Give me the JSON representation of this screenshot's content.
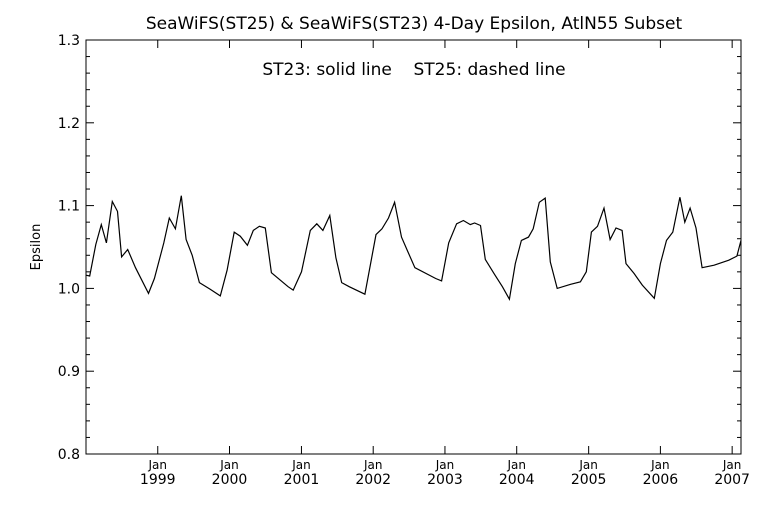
{
  "chart_data": {
    "type": "line",
    "title": "SeaWiFS(ST25) & SeaWiFS(ST23) 4-Day Epsilon, AtlN55 Subset",
    "annotation": "ST23: solid line    ST25: dashed line",
    "xlabel": "",
    "ylabel": "Epsilon",
    "ylim": [
      0.8,
      1.3
    ],
    "yticks": [
      "0.8",
      "0.9",
      "1.0",
      "1.1",
      "1.2",
      "1.3"
    ],
    "xlim": [
      "1998-01-01",
      "2007-02-15"
    ],
    "xticks": [
      {
        "month": "Jan",
        "year": "1999",
        "date": "1999-01-01"
      },
      {
        "month": "Jan",
        "year": "2000",
        "date": "2000-01-01"
      },
      {
        "month": "Jan",
        "year": "2001",
        "date": "2001-01-01"
      },
      {
        "month": "Jan",
        "year": "2002",
        "date": "2002-01-01"
      },
      {
        "month": "Jan",
        "year": "2003",
        "date": "2003-01-01"
      },
      {
        "month": "Jan",
        "year": "2004",
        "date": "2004-01-01"
      },
      {
        "month": "Jan",
        "year": "2005",
        "date": "2005-01-01"
      },
      {
        "month": "Jan",
        "year": "2006",
        "date": "2006-01-01"
      },
      {
        "month": "Jan",
        "year": "2007",
        "date": "2007-01-01"
      }
    ],
    "grid": false,
    "series": [
      {
        "name": "ST23",
        "style": "solid",
        "points": [
          [
            "1998-01-01",
            1.016
          ],
          [
            "1998-01-20",
            1.015
          ],
          [
            "1998-02-20",
            1.053
          ],
          [
            "1998-03-20",
            1.077
          ],
          [
            "1998-04-15",
            1.055
          ],
          [
            "1998-05-15",
            1.105
          ],
          [
            "1998-06-10",
            1.093
          ],
          [
            "1998-07-01",
            1.038
          ],
          [
            "1998-08-01",
            1.047
          ],
          [
            "1998-09-10",
            1.025
          ],
          [
            "1998-11-15",
            0.994
          ],
          [
            "1998-12-15",
            1.012
          ],
          [
            "1999-02-01",
            1.055
          ],
          [
            "1999-03-01",
            1.085
          ],
          [
            "1999-04-01",
            1.072
          ],
          [
            "1999-05-01",
            1.112
          ],
          [
            "1999-05-25",
            1.059
          ],
          [
            "1999-06-25",
            1.04
          ],
          [
            "1999-08-01",
            1.007
          ],
          [
            "1999-09-25",
            0.999
          ],
          [
            "1999-11-15",
            0.991
          ],
          [
            "1999-12-20",
            1.022
          ],
          [
            "2000-01-25",
            1.068
          ],
          [
            "2000-02-25",
            1.063
          ],
          [
            "2000-04-01",
            1.052
          ],
          [
            "2000-05-01",
            1.07
          ],
          [
            "2000-06-01",
            1.075
          ],
          [
            "2000-07-01",
            1.073
          ],
          [
            "2000-08-01",
            1.019
          ],
          [
            "2000-09-15",
            1.01
          ],
          [
            "2000-10-25",
            1.002
          ],
          [
            "2000-11-20",
            0.998
          ],
          [
            "2001-01-01",
            1.02
          ],
          [
            "2001-02-15",
            1.07
          ],
          [
            "2001-03-20",
            1.078
          ],
          [
            "2001-04-20",
            1.07
          ],
          [
            "2001-05-25",
            1.088
          ],
          [
            "2001-06-25",
            1.037
          ],
          [
            "2001-07-25",
            1.007
          ],
          [
            "2001-09-01",
            1.002
          ],
          [
            "2001-11-20",
            0.993
          ],
          [
            "2002-01-15",
            1.065
          ],
          [
            "2002-02-15",
            1.072
          ],
          [
            "2002-03-20",
            1.085
          ],
          [
            "2002-04-20",
            1.104
          ],
          [
            "2002-05-25",
            1.062
          ],
          [
            "2002-06-25",
            1.045
          ],
          [
            "2002-08-01",
            1.025
          ],
          [
            "2002-11-15",
            1.012
          ],
          [
            "2002-12-15",
            1.009
          ],
          [
            "2003-01-20",
            1.055
          ],
          [
            "2003-03-01",
            1.078
          ],
          [
            "2003-04-05",
            1.082
          ],
          [
            "2003-05-10",
            1.077
          ],
          [
            "2003-06-01",
            1.079
          ],
          [
            "2003-07-01",
            1.076
          ],
          [
            "2003-07-25",
            1.035
          ],
          [
            "2003-09-10",
            1.017
          ],
          [
            "2003-10-20",
            1.002
          ],
          [
            "2003-11-25",
            0.987
          ],
          [
            "2003-12-25",
            1.03
          ],
          [
            "2004-01-25",
            1.058
          ],
          [
            "2004-03-01",
            1.062
          ],
          [
            "2004-03-25",
            1.072
          ],
          [
            "2004-04-25",
            1.104
          ],
          [
            "2004-05-25",
            1.109
          ],
          [
            "2004-06-20",
            1.032
          ],
          [
            "2004-07-25",
            1.0
          ],
          [
            "2004-10-01",
            1.005
          ],
          [
            "2004-11-20",
            1.008
          ],
          [
            "2004-12-20",
            1.02
          ],
          [
            "2005-01-15",
            1.068
          ],
          [
            "2005-02-15",
            1.075
          ],
          [
            "2005-03-20",
            1.097
          ],
          [
            "2005-04-20",
            1.059
          ],
          [
            "2005-05-20",
            1.073
          ],
          [
            "2005-06-20",
            1.07
          ],
          [
            "2005-07-10",
            1.03
          ],
          [
            "2005-08-20",
            1.018
          ],
          [
            "2005-10-01",
            1.004
          ],
          [
            "2005-12-01",
            0.988
          ],
          [
            "2006-01-01",
            1.03
          ],
          [
            "2006-02-01",
            1.058
          ],
          [
            "2006-03-05",
            1.068
          ],
          [
            "2006-04-10",
            1.11
          ],
          [
            "2006-05-05",
            1.08
          ],
          [
            "2006-06-01",
            1.097
          ],
          [
            "2006-07-01",
            1.073
          ],
          [
            "2006-08-01",
            1.025
          ],
          [
            "2006-10-01",
            1.028
          ],
          [
            "2006-12-15",
            1.034
          ],
          [
            "2007-01-25",
            1.039
          ],
          [
            "2007-02-15",
            1.058
          ]
        ]
      }
    ]
  }
}
